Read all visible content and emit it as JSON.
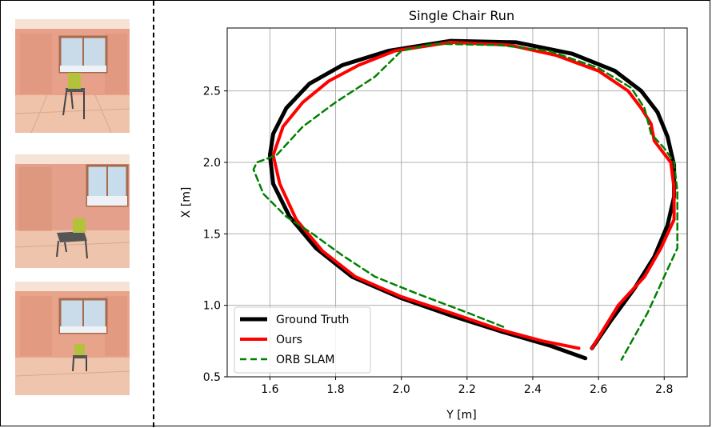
{
  "panels": [
    {
      "caption": ""
    },
    {
      "caption": ""
    },
    {
      "caption": ""
    }
  ],
  "chart_data": {
    "type": "line",
    "title": "Single Chair Run",
    "xlabel": "Y [m]",
    "ylabel": "X [m]",
    "xlim": [
      1.47,
      2.87
    ],
    "ylim": [
      0.5,
      2.94
    ],
    "xticks": [
      "1.6",
      "1.8",
      "2.0",
      "2.2",
      "2.4",
      "2.6",
      "2.8"
    ],
    "yticks": [
      "0.5",
      "1.0",
      "1.5",
      "2.0",
      "2.5"
    ],
    "grid": true,
    "legend_position": "lower-left",
    "series": [
      {
        "name": "Ground Truth",
        "color": "#000000",
        "style": "solid",
        "points": [
          [
            2.56,
            0.63
          ],
          [
            2.45,
            0.72
          ],
          [
            2.3,
            0.82
          ],
          [
            2.15,
            0.93
          ],
          [
            2.0,
            1.05
          ],
          [
            1.85,
            1.2
          ],
          [
            1.74,
            1.4
          ],
          [
            1.66,
            1.62
          ],
          [
            1.61,
            1.85
          ],
          [
            1.6,
            2.05
          ],
          [
            1.61,
            2.2
          ],
          [
            1.65,
            2.38
          ],
          [
            1.72,
            2.55
          ],
          [
            1.82,
            2.68
          ],
          [
            1.96,
            2.78
          ],
          [
            2.15,
            2.85
          ],
          [
            2.35,
            2.84
          ],
          [
            2.52,
            2.76
          ],
          [
            2.65,
            2.64
          ],
          [
            2.73,
            2.5
          ],
          [
            2.78,
            2.35
          ],
          [
            2.81,
            2.18
          ],
          [
            2.83,
            1.98
          ],
          [
            2.83,
            1.76
          ],
          [
            2.81,
            1.56
          ],
          [
            2.77,
            1.34
          ],
          [
            2.71,
            1.12
          ],
          [
            2.64,
            0.9
          ],
          [
            2.58,
            0.7
          ]
        ]
      },
      {
        "name": "Ours",
        "color": "#ff0000",
        "style": "solid",
        "points": [
          [
            2.54,
            0.7
          ],
          [
            2.43,
            0.75
          ],
          [
            2.3,
            0.83
          ],
          [
            2.16,
            0.94
          ],
          [
            2.0,
            1.06
          ],
          [
            1.86,
            1.2
          ],
          [
            1.76,
            1.38
          ],
          [
            1.68,
            1.6
          ],
          [
            1.63,
            1.85
          ],
          [
            1.61,
            2.05
          ],
          [
            1.64,
            2.25
          ],
          [
            1.7,
            2.42
          ],
          [
            1.78,
            2.57
          ],
          [
            1.87,
            2.68
          ],
          [
            1.98,
            2.78
          ],
          [
            2.15,
            2.84
          ],
          [
            2.33,
            2.82
          ],
          [
            2.47,
            2.75
          ],
          [
            2.6,
            2.64
          ],
          [
            2.69,
            2.5
          ],
          [
            2.73,
            2.38
          ],
          [
            2.76,
            2.27
          ],
          [
            2.77,
            2.15
          ],
          [
            2.82,
            2.0
          ],
          [
            2.83,
            1.82
          ],
          [
            2.83,
            1.6
          ],
          [
            2.79,
            1.4
          ],
          [
            2.74,
            1.2
          ],
          [
            2.66,
            1.0
          ],
          [
            2.58,
            0.7
          ]
        ]
      },
      {
        "name": "ORB SLAM",
        "color": "#008000",
        "style": "dashed",
        "points": [
          [
            2.31,
            0.85
          ],
          [
            2.2,
            0.95
          ],
          [
            2.05,
            1.08
          ],
          [
            1.92,
            1.2
          ],
          [
            1.82,
            1.35
          ],
          [
            1.73,
            1.5
          ],
          [
            1.65,
            1.62
          ],
          [
            1.58,
            1.78
          ],
          [
            1.55,
            1.95
          ],
          [
            1.56,
            2.0
          ],
          [
            1.62,
            2.05
          ],
          [
            1.7,
            2.25
          ],
          [
            1.8,
            2.42
          ],
          [
            1.92,
            2.6
          ],
          [
            2.0,
            2.78
          ],
          [
            2.1,
            2.83
          ],
          [
            2.3,
            2.82
          ],
          [
            2.45,
            2.78
          ],
          [
            2.6,
            2.66
          ],
          [
            2.7,
            2.52
          ],
          [
            2.74,
            2.38
          ],
          [
            2.76,
            2.2
          ],
          [
            2.8,
            2.1
          ],
          [
            2.83,
            2.0
          ],
          [
            2.84,
            1.8
          ],
          [
            2.84,
            1.6
          ],
          [
            2.84,
            1.4
          ],
          [
            2.8,
            1.2
          ],
          [
            2.75,
            0.95
          ],
          [
            2.67,
            0.62
          ]
        ]
      }
    ]
  }
}
